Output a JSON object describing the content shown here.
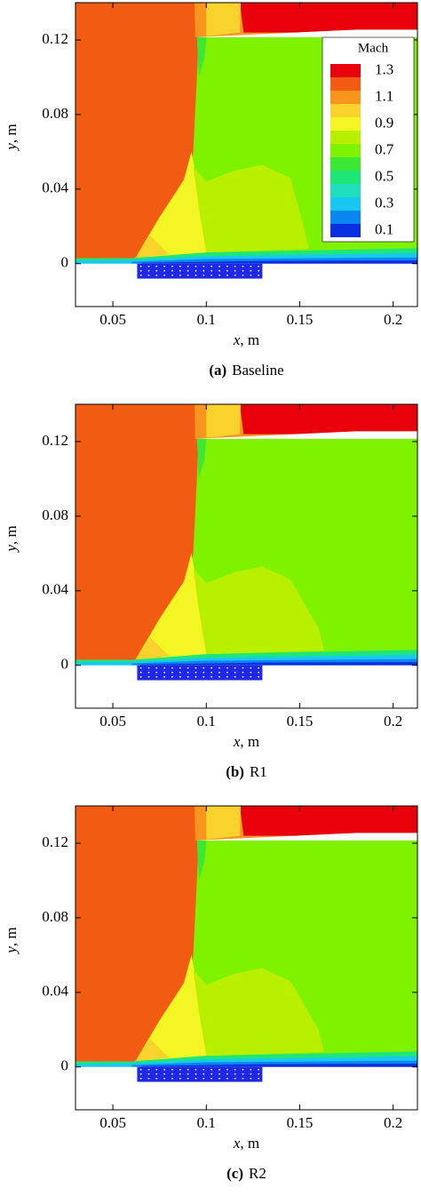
{
  "chart_data": [
    {
      "type": "contour",
      "panel_label": "(a)",
      "caption": "Baseline",
      "xlabel": "x",
      "xunit": ", m",
      "ylabel": "y",
      "yunit": ", m",
      "xlim": [
        0.03,
        0.213
      ],
      "ylim": [
        -0.023,
        0.14
      ],
      "xticks": [
        0.05,
        0.1,
        0.15,
        0.2
      ],
      "yticks": [
        0,
        0.04,
        0.08,
        0.12
      ],
      "legend": {
        "title": "Mach",
        "labels": [
          1.3,
          1.1,
          0.9,
          0.7,
          0.5,
          0.3,
          0.1
        ],
        "colors": [
          "#e8000b",
          "#f25c12",
          "#f7951f",
          "#f9d22b",
          "#f3f524",
          "#b9f000",
          "#7ff200",
          "#3be834",
          "#1ee678",
          "#1ee0bc",
          "#19c8ee",
          "#0a86f0",
          "#0a2fe0"
        ]
      }
    },
    {
      "type": "contour",
      "panel_label": "(b)",
      "caption": "R1",
      "xlabel": "x",
      "xunit": ", m",
      "ylabel": "y",
      "yunit": ", m",
      "xlim": [
        0.03,
        0.213
      ],
      "ylim": [
        -0.023,
        0.14
      ],
      "xticks": [
        0.05,
        0.1,
        0.15,
        0.2
      ],
      "yticks": [
        0,
        0.04,
        0.08,
        0.12
      ]
    },
    {
      "type": "contour",
      "panel_label": "(c)",
      "caption": "R2",
      "xlabel": "x",
      "xunit": ", m",
      "ylabel": "y",
      "yunit": ", m",
      "xlim": [
        0.03,
        0.213
      ],
      "ylim": [
        -0.023,
        0.14
      ],
      "xticks": [
        0.05,
        0.1,
        0.15,
        0.2
      ],
      "yticks": [
        0,
        0.04,
        0.08,
        0.12
      ]
    }
  ]
}
